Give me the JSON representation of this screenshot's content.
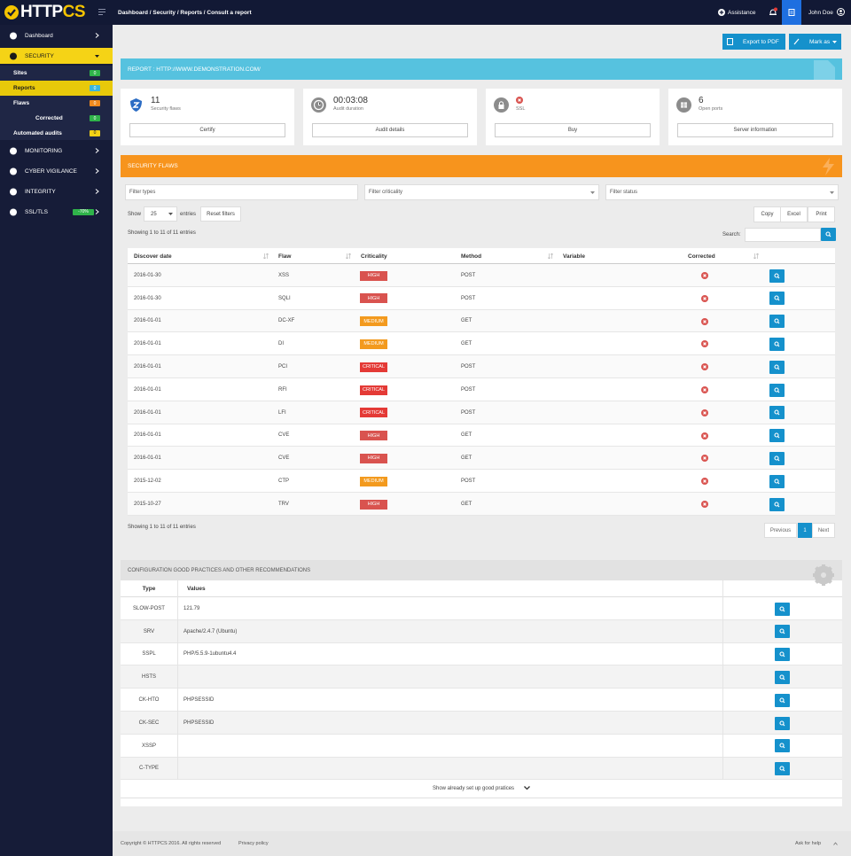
{
  "topbar": {
    "logo": "HTTP",
    "logo_accent": "CS",
    "breadcrumb": "Dashboard / Security / Reports / Consult a report",
    "assistance": "Assistance",
    "user": "John Doe"
  },
  "sidebar": [
    {
      "label": "Dashboard"
    },
    {
      "label": "SECURITY"
    },
    {
      "label": "Sites",
      "badge": "0"
    },
    {
      "label": "Reports",
      "badge": "0"
    },
    {
      "label": "Flaws",
      "badge": "0"
    },
    {
      "label": "Corrected",
      "badge": "0"
    },
    {
      "label": "Automated audits",
      "badge": "0"
    },
    {
      "label": "MONITORING"
    },
    {
      "label": "CYBER VIGILANCE"
    },
    {
      "label": "INTEGRITY"
    },
    {
      "label": "SSL/TLS",
      "badge": "-70%"
    }
  ],
  "actions": {
    "export": "Export to PDF",
    "mark": "Mark as"
  },
  "report": {
    "title": "REPORT : HTTP://WWW.DEMONSTRATION.COM/"
  },
  "cards": [
    {
      "value": "11",
      "label": "Security flaws",
      "button": "Certify"
    },
    {
      "value": "00:03:08",
      "label": "Audit duration",
      "button": "Audit details"
    },
    {
      "label": "SSL",
      "button": "Buy"
    },
    {
      "value": "6",
      "label": "Open ports",
      "button": "Server information"
    }
  ],
  "flaws": {
    "title": "SECURITY FLAWS",
    "filters": [
      "Filter types",
      "Filter criticality",
      "Filter status"
    ],
    "show": "Show",
    "page_size": "25",
    "entries": "entries",
    "reset": "Reset filters",
    "exports": [
      "Copy",
      "Excel",
      "Print"
    ],
    "info": "Showing 1 to 11 of 11 entries",
    "search": "Search:",
    "columns": [
      "Discover date",
      "Flaw",
      "Criticality",
      "Method",
      "Variable",
      "Corrected"
    ],
    "rows": [
      [
        "2016-01-30",
        "XSS",
        "HIGH",
        "POST"
      ],
      [
        "2016-01-30",
        "SQLI",
        "HIGH",
        "POST"
      ],
      [
        "2016-01-01",
        "DC-XF",
        "MEDIUM",
        "GET"
      ],
      [
        "2016-01-01",
        "DI",
        "MEDIUM",
        "GET"
      ],
      [
        "2016-01-01",
        "PCI",
        "CRITICAL",
        "POST"
      ],
      [
        "2016-01-01",
        "RFI",
        "CRITICAL",
        "POST"
      ],
      [
        "2016-01-01",
        "LFI",
        "CRITICAL",
        "POST"
      ],
      [
        "2016-01-01",
        "CVE",
        "HIGH",
        "GET"
      ],
      [
        "2016-01-01",
        "CVE",
        "HIGH",
        "GET"
      ],
      [
        "2015-12-02",
        "CTP",
        "MEDIUM",
        "POST"
      ],
      [
        "2015-10-27",
        "TRV",
        "HIGH",
        "GET"
      ]
    ],
    "info_bottom": "Showing 1 to 11 of 11 entries",
    "pagination": [
      "Previous",
      "1",
      "Next"
    ]
  },
  "config": {
    "title": "CONFIGURATION GOOD PRACTICES AND OTHER RECOMMENDATIONS",
    "columns": [
      "Type",
      "Values"
    ],
    "rows": [
      {
        "type": "SLOW-POST",
        "value": "121.79"
      },
      {
        "type": "SRV",
        "value": "Apache/2.4.7 (Ubuntu)"
      },
      {
        "type": "SSPL",
        "value": "PHP/5.5.9-1ubuntu4.4"
      },
      {
        "type": "HSTS"
      },
      {
        "type": "CK-HTO",
        "value": "PHPSESSID"
      },
      {
        "type": "CK-SEC",
        "value": "PHPSESSID"
      },
      {
        "type": "XSSP"
      },
      {
        "type": "C-TYPE"
      }
    ],
    "more": "Show already set up good pratices"
  },
  "footer": {
    "copyright": "Copyright © HTTPCS 2016. All rights reserved",
    "privacy": "Privacy policy",
    "help": "Ask for help"
  }
}
